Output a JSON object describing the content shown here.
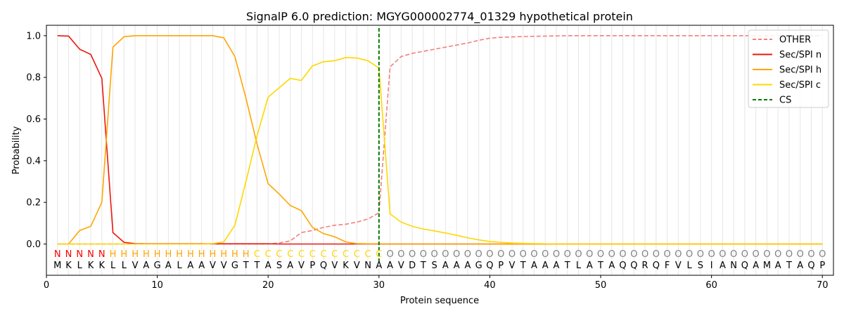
{
  "chart_data": {
    "type": "line",
    "title": "SignalP 6.0 prediction: MGYG000002774_01329 hypothetical protein",
    "xlabel": "Protein sequence",
    "ylabel": "Probability",
    "xlim": [
      0,
      71
    ],
    "ylim": [
      -0.15,
      1.05
    ],
    "xticks": [
      0,
      10,
      20,
      30,
      40,
      50,
      60,
      70
    ],
    "yticks": [
      0.0,
      0.2,
      0.4,
      0.6,
      0.8,
      1.0
    ],
    "ytick_labels": [
      "0.0",
      "0.2",
      "0.4",
      "0.6",
      "0.8",
      "1.0"
    ],
    "grid": "vertical lines at each residue",
    "legend_position": "top-right",
    "sequence": [
      "M",
      "K",
      "L",
      "K",
      "K",
      "L",
      "L",
      "V",
      "A",
      "G",
      "A",
      "L",
      "A",
      "A",
      "V",
      "V",
      "G",
      "T",
      "T",
      "A",
      "S",
      "A",
      "V",
      "P",
      "Q",
      "V",
      "K",
      "V",
      "N",
      "A",
      "A",
      "V",
      "D",
      "T",
      "S",
      "A",
      "A",
      "A",
      "G",
      "Q",
      "P",
      "V",
      "T",
      "A",
      "A",
      "A",
      "T",
      "L",
      "A",
      "T",
      "A",
      "Q",
      "Q",
      "R",
      "Q",
      "F",
      "V",
      "L",
      "S",
      "I",
      "A",
      "N",
      "Q",
      "A",
      "M",
      "A",
      "T",
      "A",
      "Q",
      "P"
    ],
    "labels": [
      "N",
      "N",
      "N",
      "N",
      "N",
      "H",
      "H",
      "H",
      "H",
      "H",
      "H",
      "H",
      "H",
      "H",
      "H",
      "H",
      "H",
      "H",
      "C",
      "C",
      "C",
      "C",
      "C",
      "C",
      "C",
      "C",
      "C",
      "C",
      "C",
      "C",
      "O",
      "O",
      "O",
      "O",
      "O",
      "O",
      "O",
      "O",
      "O",
      "O",
      "O",
      "O",
      "O",
      "O",
      "O",
      "O",
      "O",
      "O",
      "O",
      "O",
      "O",
      "O",
      "O",
      "O",
      "O",
      "O",
      "O",
      "O",
      "O",
      "O",
      "O",
      "O",
      "O",
      "O",
      "O",
      "O",
      "O",
      "O",
      "O",
      "O"
    ],
    "label_colors": {
      "N": "#ff0000",
      "H": "#ffa500",
      "C": "#ffd700",
      "O": "#808080"
    },
    "x": [
      1,
      2,
      3,
      4,
      5,
      6,
      7,
      8,
      9,
      10,
      11,
      12,
      13,
      14,
      15,
      16,
      17,
      18,
      19,
      20,
      21,
      22,
      23,
      24,
      25,
      26,
      27,
      28,
      29,
      30,
      31,
      32,
      33,
      34,
      35,
      36,
      37,
      38,
      39,
      40,
      41,
      42,
      43,
      44,
      45,
      46,
      47,
      48,
      49,
      50,
      51,
      52,
      53,
      54,
      55,
      56,
      57,
      58,
      59,
      60,
      61,
      62,
      63,
      64,
      65,
      66,
      67,
      68,
      69,
      70
    ],
    "series": [
      {
        "name": "OTHER",
        "color": "#f08080",
        "style": "dashed",
        "values": [
          0,
          0,
          0,
          0,
          0,
          0,
          0,
          0,
          0,
          0,
          0,
          0,
          0,
          0,
          0,
          0,
          0,
          0,
          0,
          0,
          0.005,
          0.015,
          0.055,
          0.065,
          0.08,
          0.09,
          0.095,
          0.105,
          0.12,
          0.15,
          0.85,
          0.9,
          0.915,
          0.925,
          0.935,
          0.945,
          0.955,
          0.965,
          0.978,
          0.988,
          0.992,
          0.994,
          0.996,
          0.997,
          0.998,
          0.999,
          1,
          1,
          1,
          1,
          1,
          1,
          1,
          1,
          1,
          1,
          1,
          1,
          1,
          1,
          1,
          1,
          1,
          1,
          1,
          1,
          1,
          1,
          1,
          1
        ]
      },
      {
        "name": "Sec/SPI n",
        "color": "#e8190d",
        "style": "solid",
        "values": [
          1.0,
          0.998,
          0.935,
          0.91,
          0.795,
          0.055,
          0.008,
          0.002,
          0.001,
          0.001,
          0.001,
          0.001,
          0.001,
          0.001,
          0.001,
          0.001,
          0.001,
          0.001,
          0.001,
          0.001,
          0,
          0,
          0,
          0,
          0,
          0,
          0,
          0,
          0,
          0,
          0,
          0,
          0,
          0,
          0,
          0,
          0,
          0,
          0,
          0,
          0,
          0,
          0,
          0,
          0,
          0,
          0,
          0,
          0,
          0,
          0,
          0,
          0,
          0,
          0,
          0,
          0,
          0,
          0,
          0,
          0,
          0,
          0,
          0,
          0,
          0,
          0,
          0,
          0,
          0
        ]
      },
      {
        "name": "Sec/SPI h",
        "color": "#ffa500",
        "style": "solid",
        "values": [
          0,
          0,
          0.065,
          0.085,
          0.2,
          0.945,
          0.995,
          1.0,
          1.0,
          1.0,
          1.0,
          1.0,
          1.0,
          1.0,
          1.0,
          0.99,
          0.9,
          0.7,
          0.48,
          0.29,
          0.24,
          0.185,
          0.16,
          0.08,
          0.05,
          0.035,
          0.01,
          0.002,
          0.001,
          0.001,
          0,
          0,
          0,
          0,
          0,
          0,
          0,
          0,
          0,
          0,
          0,
          0,
          0,
          0,
          0,
          0,
          0,
          0,
          0,
          0,
          0,
          0,
          0,
          0,
          0,
          0,
          0,
          0,
          0,
          0,
          0,
          0,
          0,
          0,
          0,
          0,
          0,
          0,
          0,
          0
        ]
      },
      {
        "name": "Sec/SPI c",
        "color": "#ffd700",
        "style": "solid",
        "values": [
          0,
          0,
          0,
          0,
          0,
          0,
          0,
          0,
          0,
          0,
          0,
          0,
          0,
          0,
          0.002,
          0.01,
          0.09,
          0.3,
          0.52,
          0.705,
          0.75,
          0.795,
          0.785,
          0.855,
          0.875,
          0.88,
          0.895,
          0.893,
          0.88,
          0.845,
          0.145,
          0.105,
          0.085,
          0.072,
          0.063,
          0.053,
          0.042,
          0.03,
          0.02,
          0.012,
          0.008,
          0.005,
          0.003,
          0.002,
          0.001,
          0,
          0,
          0,
          0,
          0,
          0,
          0,
          0,
          0,
          0,
          0,
          0,
          0,
          0,
          0,
          0,
          0,
          0,
          0,
          0,
          0,
          0,
          0,
          0,
          0
        ]
      }
    ],
    "cs_line": {
      "name": "CS",
      "x": 30,
      "color": "#007a00",
      "style": "dashed"
    },
    "legend": [
      "OTHER",
      "Sec/SPI n",
      "Sec/SPI h",
      "Sec/SPI c",
      "CS"
    ]
  }
}
